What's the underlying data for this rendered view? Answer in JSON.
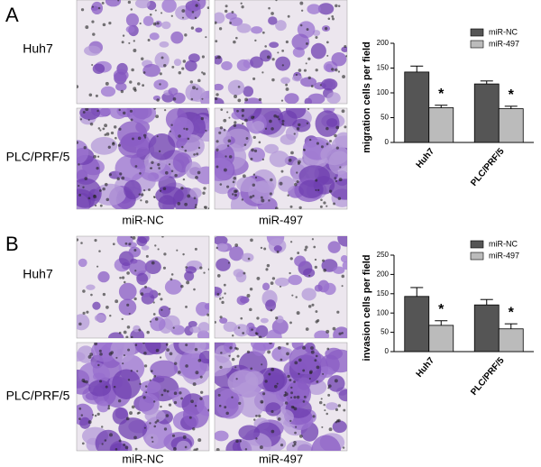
{
  "panels": [
    {
      "label": "A",
      "rows": [
        "Huh7",
        "PLC/PRF/5"
      ],
      "columns": [
        "miR-NC",
        "miR-497"
      ]
    },
    {
      "label": "B",
      "rows": [
        "Huh7",
        "PLC/PRF/5"
      ],
      "columns": [
        "miR-NC",
        "miR-497"
      ]
    }
  ],
  "chart_data": [
    {
      "type": "bar",
      "y_label": "migration cells per field",
      "categories": [
        "Huh7",
        "PLC/PRF/5"
      ],
      "series": [
        {
          "name": "miR-NC",
          "color": "#555555",
          "values": [
            142,
            118
          ],
          "errors": [
            12,
            6
          ]
        },
        {
          "name": "miR-497",
          "color": "#bbbbbb",
          "values": [
            70,
            68
          ],
          "errors": [
            5,
            5
          ]
        }
      ],
      "significance": [
        "*",
        "*"
      ],
      "ylim": [
        0,
        200
      ],
      "yticks": [
        0,
        50,
        100,
        150,
        200
      ]
    },
    {
      "type": "bar",
      "y_label": "invasion cells per field",
      "categories": [
        "Huh7",
        "PLC/PRF/5"
      ],
      "series": [
        {
          "name": "miR-NC",
          "color": "#555555",
          "values": [
            143,
            121
          ],
          "errors": [
            23,
            14
          ]
        },
        {
          "name": "miR-497",
          "color": "#bbbbbb",
          "values": [
            68,
            59
          ],
          "errors": [
            12,
            13
          ]
        }
      ],
      "significance": [
        "*",
        "*"
      ],
      "ylim": [
        0,
        250
      ],
      "yticks": [
        0,
        50,
        100,
        150,
        200,
        250
      ]
    }
  ]
}
